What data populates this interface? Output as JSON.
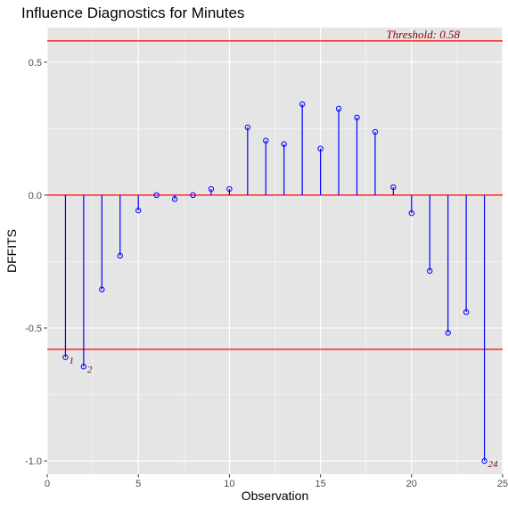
{
  "chart_data": {
    "type": "scatter",
    "title": "Influence Diagnostics for Minutes",
    "xlabel": "Observation",
    "ylabel": "DFFITS",
    "xlim": [
      0,
      25
    ],
    "ylim": [
      -1.05,
      0.63
    ],
    "x_ticks": [
      "0",
      "5",
      "10",
      "15",
      "20",
      "25"
    ],
    "y_ticks": [
      "-1.0",
      "-0.5",
      "0.0",
      "0.5"
    ],
    "grid": true,
    "threshold": 0.58,
    "threshold_label": "Threshold: 0.58",
    "colors": {
      "stems": "#0000ff",
      "threshold_lines": "#ff0000",
      "labels": "#8b0000",
      "panel": "#e5e5e5",
      "grid": "#ffffff"
    },
    "x": [
      1,
      2,
      3,
      4,
      5,
      6,
      7,
      8,
      9,
      10,
      11,
      12,
      13,
      14,
      15,
      16,
      17,
      18,
      19,
      20,
      21,
      22,
      23,
      24
    ],
    "values": [
      -0.61,
      -0.645,
      -0.355,
      -0.228,
      -0.058,
      0.0,
      -0.015,
      0.0,
      0.023,
      0.023,
      0.255,
      0.205,
      0.192,
      0.342,
      0.175,
      0.325,
      0.292,
      0.238,
      0.03,
      -0.068,
      -0.285,
      -0.518,
      -0.44,
      -1.0
    ],
    "point_labels": [
      {
        "x": 1,
        "label": "1"
      },
      {
        "x": 2,
        "label": "2"
      },
      {
        "x": 24,
        "label": "24"
      }
    ]
  }
}
